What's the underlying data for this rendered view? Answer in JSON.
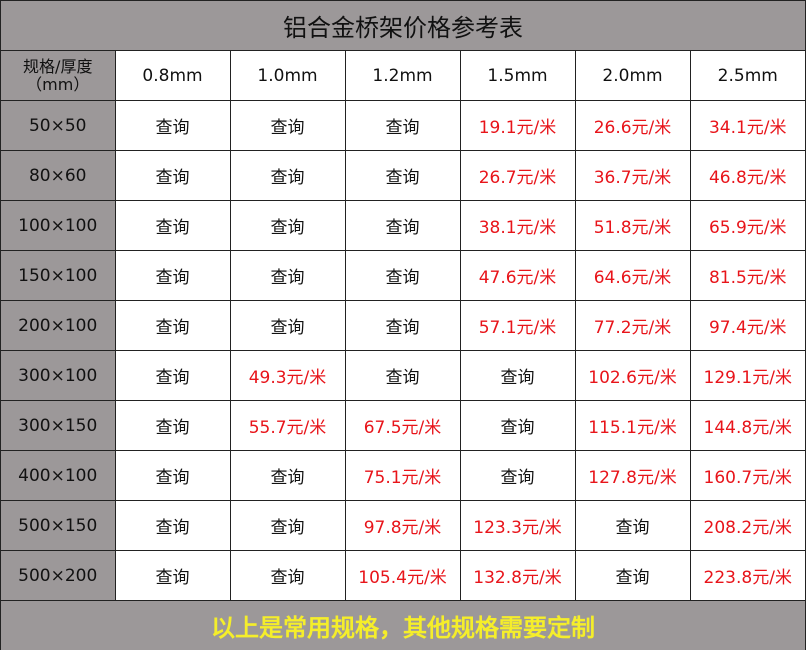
{
  "title": "铝合金桥架价格参考表",
  "corner_header": [
    "规格/厚度",
    "（mm）"
  ],
  "columns": [
    "0.8mm",
    "1.0mm",
    "1.2mm",
    "1.5mm",
    "2.0mm",
    "2.5mm"
  ],
  "rows": [
    {
      "spec": "50×50",
      "cells": [
        "查询",
        "查询",
        "查询",
        "19.1元/米",
        "26.6元/米",
        "34.1元/米"
      ]
    },
    {
      "spec": "80×60",
      "cells": [
        "查询",
        "查询",
        "查询",
        "26.7元/米",
        "36.7元/米",
        "46.8元/米"
      ]
    },
    {
      "spec": "100×100",
      "cells": [
        "查询",
        "查询",
        "查询",
        "38.1元/米",
        "51.8元/米",
        "65.9元/米"
      ]
    },
    {
      "spec": "150×100",
      "cells": [
        "查询",
        "查询",
        "查询",
        "47.6元/米",
        "64.6元/米",
        "81.5元/米"
      ]
    },
    {
      "spec": "200×100",
      "cells": [
        "查询",
        "查询",
        "查询",
        "57.1元/米",
        "77.2元/米",
        "97.4元/米"
      ]
    },
    {
      "spec": "300×100",
      "cells": [
        "查询",
        "49.3元/米",
        "查询",
        "查询",
        "102.6元/米",
        "129.1元/米"
      ]
    },
    {
      "spec": "300×150",
      "cells": [
        "查询",
        "55.7元/米",
        "67.5元/米",
        "查询",
        "115.1元/米",
        "144.8元/米"
      ]
    },
    {
      "spec": "400×100",
      "cells": [
        "查询",
        "查询",
        "75.1元/米",
        "查询",
        "127.8元/米",
        "160.7元/米"
      ]
    },
    {
      "spec": "500×150",
      "cells": [
        "查询",
        "查询",
        "97.8元/米",
        "123.3元/米",
        "查询",
        "208.2元/米"
      ]
    },
    {
      "spec": "500×200",
      "cells": [
        "查询",
        "查询",
        "105.4元/米",
        "132.8元/米",
        "查询",
        "223.8元/米"
      ]
    }
  ],
  "footer": "以上是常用规格，其他规格需要定制",
  "colors": {
    "header_bg": "#9c9899",
    "price_text": "#e8141a",
    "footer_text": "#f5ee2a"
  }
}
